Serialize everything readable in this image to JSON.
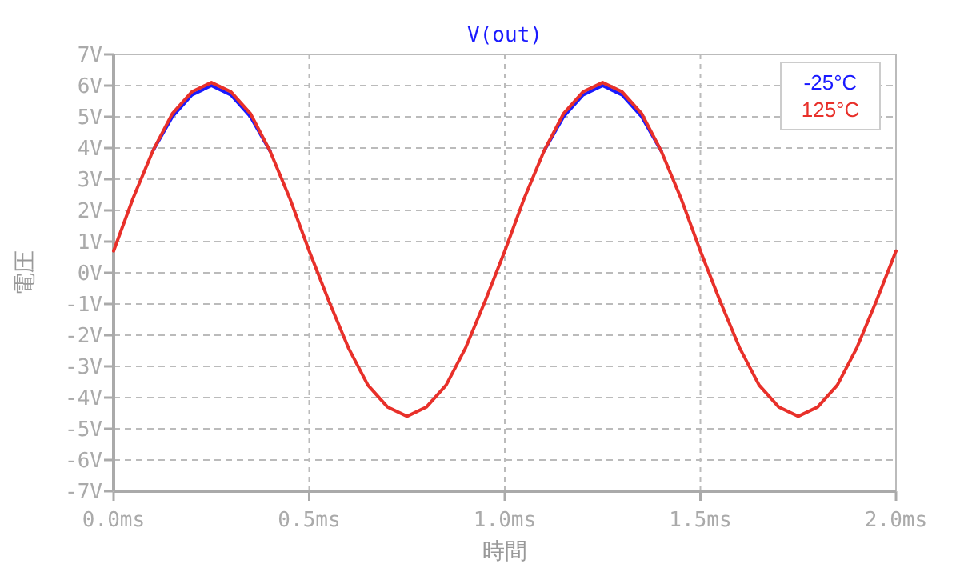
{
  "chart_data": {
    "type": "line",
    "title": "V(out)",
    "xlabel": "時間",
    "ylabel": "電圧",
    "x": [
      0,
      0.05,
      0.1,
      0.15,
      0.2,
      0.25,
      0.3,
      0.35,
      0.4,
      0.45,
      0.5,
      0.55,
      0.6,
      0.65,
      0.7,
      0.75,
      0.8,
      0.85,
      0.9,
      0.95,
      1.0,
      1.05,
      1.1,
      1.15,
      1.2,
      1.25,
      1.3,
      1.35,
      1.4,
      1.45,
      1.5,
      1.55,
      1.6,
      1.65,
      1.7,
      1.75,
      1.8,
      1.85,
      1.9,
      1.95,
      2.0
    ],
    "series": [
      {
        "name": "-25°C",
        "color": "#1a1aff",
        "values": [
          null,
          null,
          3.9,
          5.0,
          5.7,
          6.0,
          5.7,
          5.0,
          3.9,
          null,
          null,
          null,
          null,
          null,
          null,
          null,
          null,
          null,
          null,
          null,
          null,
          null,
          3.9,
          5.0,
          5.7,
          6.0,
          5.7,
          5.0,
          3.9,
          null,
          null,
          null,
          null,
          null,
          null,
          null,
          null,
          null,
          null,
          null,
          null
        ]
      },
      {
        "name": "125°C",
        "color": "#e8302a",
        "values": [
          0.7,
          2.4,
          3.9,
          5.1,
          5.8,
          6.1,
          5.8,
          5.1,
          3.9,
          2.4,
          0.7,
          -0.9,
          -2.4,
          -3.6,
          -4.3,
          -4.6,
          -4.3,
          -3.6,
          -2.4,
          -0.9,
          0.7,
          2.4,
          3.9,
          5.1,
          5.8,
          6.1,
          5.8,
          5.1,
          3.9,
          2.4,
          0.7,
          -0.9,
          -2.4,
          -3.6,
          -4.3,
          -4.6,
          -4.3,
          -3.6,
          -2.4,
          -0.9,
          0.7
        ]
      }
    ],
    "xlim": [
      0,
      2
    ],
    "xticks": [
      {
        "value": 0,
        "label": "0.0ms"
      },
      {
        "value": 0.5,
        "label": "0.5ms"
      },
      {
        "value": 1,
        "label": "1.0ms"
      },
      {
        "value": 1.5,
        "label": "1.5ms"
      },
      {
        "value": 2,
        "label": "2.0ms"
      }
    ],
    "ylim": [
      -7,
      7
    ],
    "yticks": [
      {
        "value": 7,
        "label": "7V"
      },
      {
        "value": 6,
        "label": "6V"
      },
      {
        "value": 5,
        "label": "5V"
      },
      {
        "value": 4,
        "label": "4V"
      },
      {
        "value": 3,
        "label": "3V"
      },
      {
        "value": 2,
        "label": "2V"
      },
      {
        "value": 1,
        "label": "1V"
      },
      {
        "value": 0,
        "label": "0V"
      },
      {
        "value": -1,
        "label": "-1V"
      },
      {
        "value": -2,
        "label": "-2V"
      },
      {
        "value": -3,
        "label": "-3V"
      },
      {
        "value": -4,
        "label": "-4V"
      },
      {
        "value": -5,
        "label": "-5V"
      },
      {
        "value": -6,
        "label": "-6V"
      },
      {
        "value": -7,
        "label": "-7V"
      }
    ],
    "grid": true,
    "legend": "top right",
    "marker": "none",
    "line_style": "solid"
  }
}
